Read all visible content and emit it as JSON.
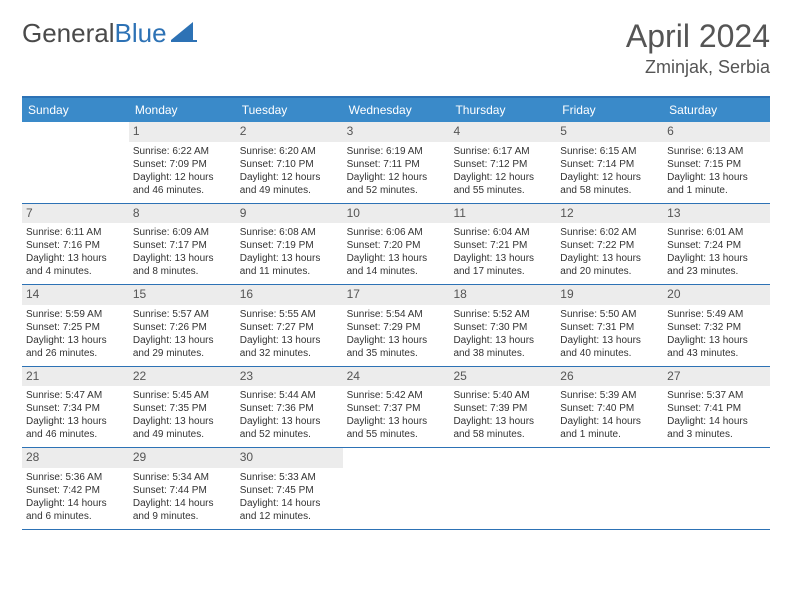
{
  "logo": {
    "part1": "General",
    "part2": "Blue"
  },
  "title": "April 2024",
  "location": "Zminjak, Serbia",
  "day_headers": [
    "Sunday",
    "Monday",
    "Tuesday",
    "Wednesday",
    "Thursday",
    "Friday",
    "Saturday"
  ],
  "colors": {
    "header_bg": "#3a8ac9",
    "border": "#2d72b5",
    "daynum_bg": "#ececec",
    "text": "#333333"
  },
  "weeks": [
    [
      {
        "n": "",
        "sr": "",
        "ss": "",
        "dl": ""
      },
      {
        "n": "1",
        "sr": "Sunrise: 6:22 AM",
        "ss": "Sunset: 7:09 PM",
        "dl": "Daylight: 12 hours and 46 minutes."
      },
      {
        "n": "2",
        "sr": "Sunrise: 6:20 AM",
        "ss": "Sunset: 7:10 PM",
        "dl": "Daylight: 12 hours and 49 minutes."
      },
      {
        "n": "3",
        "sr": "Sunrise: 6:19 AM",
        "ss": "Sunset: 7:11 PM",
        "dl": "Daylight: 12 hours and 52 minutes."
      },
      {
        "n": "4",
        "sr": "Sunrise: 6:17 AM",
        "ss": "Sunset: 7:12 PM",
        "dl": "Daylight: 12 hours and 55 minutes."
      },
      {
        "n": "5",
        "sr": "Sunrise: 6:15 AM",
        "ss": "Sunset: 7:14 PM",
        "dl": "Daylight: 12 hours and 58 minutes."
      },
      {
        "n": "6",
        "sr": "Sunrise: 6:13 AM",
        "ss": "Sunset: 7:15 PM",
        "dl": "Daylight: 13 hours and 1 minute."
      }
    ],
    [
      {
        "n": "7",
        "sr": "Sunrise: 6:11 AM",
        "ss": "Sunset: 7:16 PM",
        "dl": "Daylight: 13 hours and 4 minutes."
      },
      {
        "n": "8",
        "sr": "Sunrise: 6:09 AM",
        "ss": "Sunset: 7:17 PM",
        "dl": "Daylight: 13 hours and 8 minutes."
      },
      {
        "n": "9",
        "sr": "Sunrise: 6:08 AM",
        "ss": "Sunset: 7:19 PM",
        "dl": "Daylight: 13 hours and 11 minutes."
      },
      {
        "n": "10",
        "sr": "Sunrise: 6:06 AM",
        "ss": "Sunset: 7:20 PM",
        "dl": "Daylight: 13 hours and 14 minutes."
      },
      {
        "n": "11",
        "sr": "Sunrise: 6:04 AM",
        "ss": "Sunset: 7:21 PM",
        "dl": "Daylight: 13 hours and 17 minutes."
      },
      {
        "n": "12",
        "sr": "Sunrise: 6:02 AM",
        "ss": "Sunset: 7:22 PM",
        "dl": "Daylight: 13 hours and 20 minutes."
      },
      {
        "n": "13",
        "sr": "Sunrise: 6:01 AM",
        "ss": "Sunset: 7:24 PM",
        "dl": "Daylight: 13 hours and 23 minutes."
      }
    ],
    [
      {
        "n": "14",
        "sr": "Sunrise: 5:59 AM",
        "ss": "Sunset: 7:25 PM",
        "dl": "Daylight: 13 hours and 26 minutes."
      },
      {
        "n": "15",
        "sr": "Sunrise: 5:57 AM",
        "ss": "Sunset: 7:26 PM",
        "dl": "Daylight: 13 hours and 29 minutes."
      },
      {
        "n": "16",
        "sr": "Sunrise: 5:55 AM",
        "ss": "Sunset: 7:27 PM",
        "dl": "Daylight: 13 hours and 32 minutes."
      },
      {
        "n": "17",
        "sr": "Sunrise: 5:54 AM",
        "ss": "Sunset: 7:29 PM",
        "dl": "Daylight: 13 hours and 35 minutes."
      },
      {
        "n": "18",
        "sr": "Sunrise: 5:52 AM",
        "ss": "Sunset: 7:30 PM",
        "dl": "Daylight: 13 hours and 38 minutes."
      },
      {
        "n": "19",
        "sr": "Sunrise: 5:50 AM",
        "ss": "Sunset: 7:31 PM",
        "dl": "Daylight: 13 hours and 40 minutes."
      },
      {
        "n": "20",
        "sr": "Sunrise: 5:49 AM",
        "ss": "Sunset: 7:32 PM",
        "dl": "Daylight: 13 hours and 43 minutes."
      }
    ],
    [
      {
        "n": "21",
        "sr": "Sunrise: 5:47 AM",
        "ss": "Sunset: 7:34 PM",
        "dl": "Daylight: 13 hours and 46 minutes."
      },
      {
        "n": "22",
        "sr": "Sunrise: 5:45 AM",
        "ss": "Sunset: 7:35 PM",
        "dl": "Daylight: 13 hours and 49 minutes."
      },
      {
        "n": "23",
        "sr": "Sunrise: 5:44 AM",
        "ss": "Sunset: 7:36 PM",
        "dl": "Daylight: 13 hours and 52 minutes."
      },
      {
        "n": "24",
        "sr": "Sunrise: 5:42 AM",
        "ss": "Sunset: 7:37 PM",
        "dl": "Daylight: 13 hours and 55 minutes."
      },
      {
        "n": "25",
        "sr": "Sunrise: 5:40 AM",
        "ss": "Sunset: 7:39 PM",
        "dl": "Daylight: 13 hours and 58 minutes."
      },
      {
        "n": "26",
        "sr": "Sunrise: 5:39 AM",
        "ss": "Sunset: 7:40 PM",
        "dl": "Daylight: 14 hours and 1 minute."
      },
      {
        "n": "27",
        "sr": "Sunrise: 5:37 AM",
        "ss": "Sunset: 7:41 PM",
        "dl": "Daylight: 14 hours and 3 minutes."
      }
    ],
    [
      {
        "n": "28",
        "sr": "Sunrise: 5:36 AM",
        "ss": "Sunset: 7:42 PM",
        "dl": "Daylight: 14 hours and 6 minutes."
      },
      {
        "n": "29",
        "sr": "Sunrise: 5:34 AM",
        "ss": "Sunset: 7:44 PM",
        "dl": "Daylight: 14 hours and 9 minutes."
      },
      {
        "n": "30",
        "sr": "Sunrise: 5:33 AM",
        "ss": "Sunset: 7:45 PM",
        "dl": "Daylight: 14 hours and 12 minutes."
      },
      {
        "n": "",
        "sr": "",
        "ss": "",
        "dl": ""
      },
      {
        "n": "",
        "sr": "",
        "ss": "",
        "dl": ""
      },
      {
        "n": "",
        "sr": "",
        "ss": "",
        "dl": ""
      },
      {
        "n": "",
        "sr": "",
        "ss": "",
        "dl": ""
      }
    ]
  ]
}
